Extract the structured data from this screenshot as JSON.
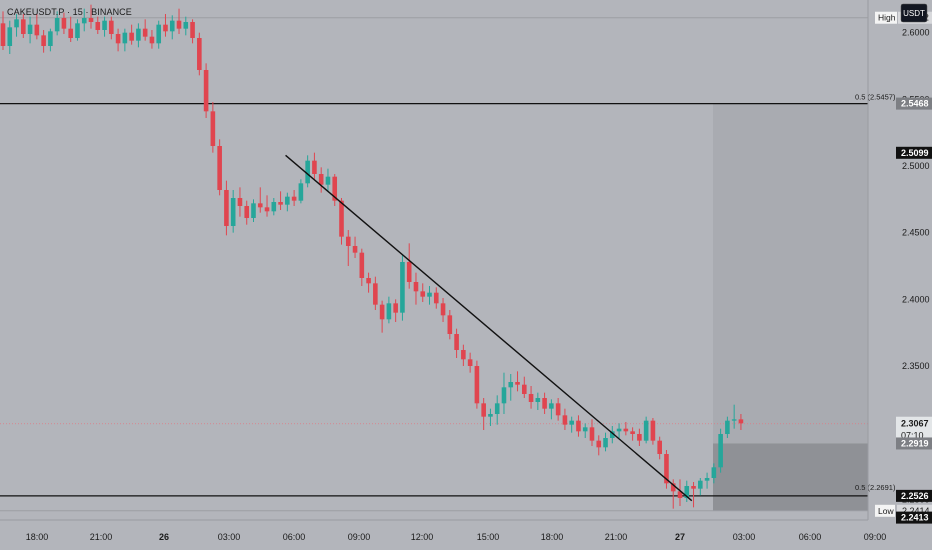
{
  "header": {
    "symbol": "CAKEUSDT.P · 15 · BINANCE",
    "currency_button": "USDT"
  },
  "colors": {
    "background": "#b3b5bb",
    "up": "#26a69a",
    "down": "#e0454f",
    "line": "#111111",
    "zone": "#8f9196",
    "zone_dark": "#7d7f84"
  },
  "annotations": {
    "high_label": "High",
    "high_value": "2.6112",
    "low_label": "Low",
    "low_value": "2.2414",
    "fib_upper": "0.5 (2.5457)",
    "fib_lower": "0.5 (2.2691)"
  },
  "price_tags": {
    "level_upper": "2.5468",
    "crosshair": "2.5099",
    "current": "2.3067",
    "countdown": "07:10",
    "zone_top": "2.2919",
    "level_lower": "2.2526",
    "zone_bottom": "2.2413"
  },
  "chart_data": {
    "type": "candlestick",
    "title": "CAKEUSDT.P · 15 · BINANCE",
    "y_ticks": [
      2.6,
      2.55,
      2.5,
      2.45,
      2.4,
      2.35,
      2.3,
      2.25
    ],
    "y_tick_labels": [
      "2.6000",
      "2.5500",
      "2.5000",
      "2.4500",
      "2.4000",
      "2.3500",
      "2.3000",
      "2.2500"
    ],
    "x_ticks": [
      "18:00",
      "21:00",
      "26",
      "03:00",
      "06:00",
      "09:00",
      "12:00",
      "15:00",
      "18:00",
      "21:00",
      "27",
      "03:00",
      "06:00",
      "09:00"
    ],
    "ylim": [
      2.2345,
      2.6245
    ],
    "horizontal_lines": [
      2.5468,
      2.2526
    ],
    "trendline": {
      "from": [
        41,
        2.508
      ],
      "to": [
        101,
        2.249
      ]
    },
    "zone": {
      "top": 2.2919,
      "bottom": 2.2413
    },
    "current_price": 2.3067,
    "candles": [
      [
        2.607,
        2.616,
        2.587,
        2.59
      ],
      [
        2.59,
        2.609,
        2.584,
        2.604
      ],
      [
        2.604,
        2.614,
        2.597,
        2.61
      ],
      [
        2.61,
        2.614,
        2.596,
        2.599
      ],
      [
        2.599,
        2.612,
        2.592,
        2.606
      ],
      [
        2.606,
        2.614,
        2.595,
        2.598
      ],
      [
        2.598,
        2.602,
        2.585,
        2.59
      ],
      [
        2.59,
        2.603,
        2.586,
        2.601
      ],
      [
        2.601,
        2.616,
        2.598,
        2.611
      ],
      [
        2.611,
        2.615,
        2.599,
        2.603
      ],
      [
        2.603,
        2.612,
        2.593,
        2.596
      ],
      [
        2.596,
        2.61,
        2.594,
        2.607
      ],
      [
        2.607,
        2.618,
        2.601,
        2.611
      ],
      [
        2.611,
        2.621,
        2.603,
        2.608
      ],
      [
        2.608,
        2.612,
        2.599,
        2.602
      ],
      [
        2.602,
        2.612,
        2.597,
        2.609
      ],
      [
        2.609,
        2.612,
        2.595,
        2.599
      ],
      [
        2.599,
        2.603,
        2.586,
        2.592
      ],
      [
        2.592,
        2.603,
        2.586,
        2.6
      ],
      [
        2.6,
        2.606,
        2.591,
        2.594
      ],
      [
        2.594,
        2.607,
        2.589,
        2.603
      ],
      [
        2.603,
        2.61,
        2.594,
        2.597
      ],
      [
        2.597,
        2.602,
        2.588,
        2.592
      ],
      [
        2.592,
        2.609,
        2.588,
        2.606
      ],
      [
        2.606,
        2.614,
        2.597,
        2.601
      ],
      [
        2.601,
        2.613,
        2.595,
        2.609
      ],
      [
        2.609,
        2.618,
        2.599,
        2.603
      ],
      [
        2.603,
        2.612,
        2.598,
        2.608
      ],
      [
        2.608,
        2.61,
        2.592,
        2.596
      ],
      [
        2.596,
        2.6,
        2.568,
        2.572
      ],
      [
        2.572,
        2.577,
        2.536,
        2.541
      ],
      [
        2.541,
        2.548,
        2.51,
        2.515
      ],
      [
        2.515,
        2.52,
        2.478,
        2.482
      ],
      [
        2.482,
        2.489,
        2.448,
        2.455
      ],
      [
        2.455,
        2.482,
        2.45,
        2.476
      ],
      [
        2.476,
        2.484,
        2.462,
        2.47
      ],
      [
        2.47,
        2.474,
        2.456,
        2.461
      ],
      [
        2.461,
        2.475,
        2.458,
        2.472
      ],
      [
        2.472,
        2.484,
        2.465,
        2.469
      ],
      [
        2.469,
        2.478,
        2.462,
        2.466
      ],
      [
        2.466,
        2.476,
        2.463,
        2.473
      ],
      [
        2.473,
        2.481,
        2.467,
        2.471
      ],
      [
        2.471,
        2.48,
        2.466,
        2.477
      ],
      [
        2.477,
        2.482,
        2.47,
        2.474
      ],
      [
        2.474,
        2.49,
        2.472,
        2.487
      ],
      [
        2.487,
        2.508,
        2.484,
        2.504
      ],
      [
        2.504,
        2.51,
        2.49,
        2.494
      ],
      [
        2.494,
        2.499,
        2.48,
        2.486
      ],
      [
        2.486,
        2.498,
        2.481,
        2.492
      ],
      [
        2.492,
        2.494,
        2.47,
        2.474
      ],
      [
        2.474,
        2.476,
        2.441,
        2.447
      ],
      [
        2.447,
        2.452,
        2.425,
        2.44
      ],
      [
        2.44,
        2.447,
        2.431,
        2.435
      ],
      [
        2.435,
        2.438,
        2.41,
        2.416
      ],
      [
        2.416,
        2.42,
        2.405,
        2.412
      ],
      [
        2.412,
        2.417,
        2.392,
        2.396
      ],
      [
        2.396,
        2.399,
        2.375,
        2.385
      ],
      [
        2.385,
        2.402,
        2.382,
        2.397
      ],
      [
        2.397,
        2.4,
        2.383,
        2.39
      ],
      [
        2.39,
        2.433,
        2.384,
        2.428
      ],
      [
        2.428,
        2.442,
        2.408,
        2.413
      ],
      [
        2.413,
        2.42,
        2.396,
        2.406
      ],
      [
        2.406,
        2.412,
        2.398,
        2.402
      ],
      [
        2.402,
        2.41,
        2.396,
        2.405
      ],
      [
        2.405,
        2.409,
        2.393,
        2.397
      ],
      [
        2.397,
        2.401,
        2.383,
        2.388
      ],
      [
        2.388,
        2.392,
        2.37,
        2.374
      ],
      [
        2.374,
        2.378,
        2.356,
        2.362
      ],
      [
        2.362,
        2.366,
        2.35,
        2.355
      ],
      [
        2.355,
        2.36,
        2.345,
        2.35
      ],
      [
        2.35,
        2.354,
        2.318,
        2.322
      ],
      [
        2.322,
        2.326,
        2.302,
        2.312
      ],
      [
        2.312,
        2.318,
        2.305,
        2.314
      ],
      [
        2.314,
        2.328,
        2.306,
        2.322
      ],
      [
        2.322,
        2.345,
        2.314,
        2.334
      ],
      [
        2.334,
        2.344,
        2.324,
        2.338
      ],
      [
        2.338,
        2.346,
        2.331,
        2.336
      ],
      [
        2.336,
        2.342,
        2.326,
        2.329
      ],
      [
        2.329,
        2.335,
        2.318,
        2.323
      ],
      [
        2.323,
        2.33,
        2.317,
        2.326
      ],
      [
        2.326,
        2.33,
        2.314,
        2.318
      ],
      [
        2.318,
        2.325,
        2.31,
        2.322
      ],
      [
        2.322,
        2.326,
        2.309,
        2.313
      ],
      [
        2.313,
        2.318,
        2.302,
        2.306
      ],
      [
        2.306,
        2.312,
        2.3,
        2.309
      ],
      [
        2.309,
        2.313,
        2.297,
        2.301
      ],
      [
        2.301,
        2.307,
        2.296,
        2.304
      ],
      [
        2.304,
        2.31,
        2.29,
        2.294
      ],
      [
        2.294,
        2.298,
        2.283,
        2.289
      ],
      [
        2.289,
        2.3,
        2.286,
        2.296
      ],
      [
        2.296,
        2.305,
        2.292,
        2.301
      ],
      [
        2.301,
        2.307,
        2.296,
        2.303
      ],
      [
        2.303,
        2.308,
        2.298,
        2.301
      ],
      [
        2.301,
        2.304,
        2.294,
        2.299
      ],
      [
        2.299,
        2.303,
        2.29,
        2.294
      ],
      [
        2.294,
        2.312,
        2.292,
        2.309
      ],
      [
        2.309,
        2.311,
        2.291,
        2.294
      ],
      [
        2.294,
        2.297,
        2.28,
        2.284
      ],
      [
        2.284,
        2.287,
        2.258,
        2.262
      ],
      [
        2.262,
        2.265,
        2.243,
        2.256
      ],
      [
        2.256,
        2.265,
        2.245,
        2.251
      ],
      [
        2.251,
        2.264,
        2.248,
        2.26
      ],
      [
        2.26,
        2.263,
        2.244,
        2.258
      ],
      [
        2.258,
        2.266,
        2.253,
        2.264
      ],
      [
        2.264,
        2.27,
        2.258,
        2.266
      ],
      [
        2.266,
        2.277,
        2.262,
        2.274
      ],
      [
        2.274,
        2.303,
        2.27,
        2.299
      ],
      [
        2.299,
        2.312,
        2.296,
        2.309
      ],
      [
        2.309,
        2.321,
        2.303,
        2.31
      ],
      [
        2.31,
        2.314,
        2.302,
        2.307
      ]
    ]
  }
}
